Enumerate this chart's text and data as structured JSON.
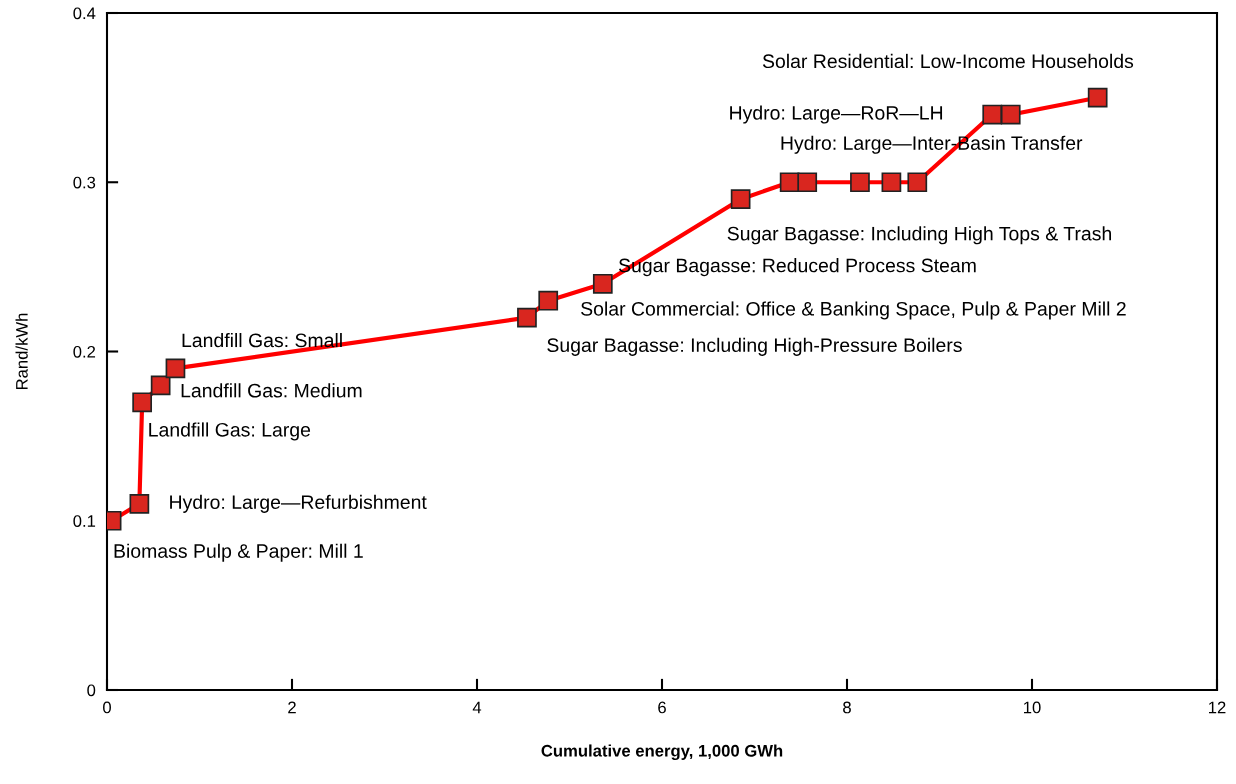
{
  "chart_data": {
    "type": "line",
    "xlabel": "Cumulative energy, 1,000 GWh",
    "ylabel": "Rand/kWh",
    "x": [
      0.05,
      0.35,
      0.38,
      0.58,
      0.74,
      4.54,
      4.77,
      5.36,
      6.85,
      7.38,
      7.57,
      8.14,
      8.48,
      8.76,
      9.57,
      9.77,
      10.71
    ],
    "series": [
      {
        "color": "#ff0000",
        "values": [
          0.1,
          0.11,
          0.17,
          0.18,
          0.19,
          0.22,
          0.23,
          0.24,
          0.29,
          0.3,
          0.3,
          0.3,
          0.3,
          0.3,
          0.34,
          0.34,
          0.35
        ]
      }
    ],
    "marker": "square",
    "line_style": "solid",
    "grid": false,
    "legend": false,
    "xlim": [
      0,
      12
    ],
    "xticks": [
      0,
      2,
      4,
      6,
      8,
      10,
      12
    ],
    "ylim": [
      0,
      0.4
    ],
    "yticks": [
      0,
      0.1,
      0.2,
      0.3,
      0.4
    ],
    "annotations": [
      {
        "text": "Biomass Pulp & Paper: Mill 1",
        "x": 0.05,
        "y": 0.1
      },
      {
        "text": "Hydro: Large—Refurbishment",
        "x": 0.35,
        "y": 0.11
      },
      {
        "text": "Landfill Gas: Large",
        "x": 0.38,
        "y": 0.17
      },
      {
        "text": "Landfill Gas: Medium",
        "x": 0.58,
        "y": 0.18
      },
      {
        "text": "Landfill Gas: Small",
        "x": 0.74,
        "y": 0.19
      },
      {
        "text": "Sugar Bagasse: Including High-Pressure Boilers",
        "x": 4.54,
        "y": 0.22
      },
      {
        "text": "Solar Commercial: Office & Banking Space, Pulp & Paper Mill 2",
        "x": 4.77,
        "y": 0.23
      },
      {
        "text": "Sugar Bagasse: Reduced Process Steam",
        "x": 5.36,
        "y": 0.24
      },
      {
        "text": "Sugar Bagasse: Including High Tops & Trash",
        "x": 6.85,
        "y": 0.29
      },
      {
        "text": "Hydro: Large—Inter-Basin Transfer",
        "x": 7.38,
        "y": 0.3
      },
      {
        "text": "Hydro: Large—RoR—LH",
        "x": 9.57,
        "y": 0.34
      },
      {
        "text": "Solar Residential: Low-Income Households",
        "x": 10.71,
        "y": 0.35
      }
    ]
  }
}
